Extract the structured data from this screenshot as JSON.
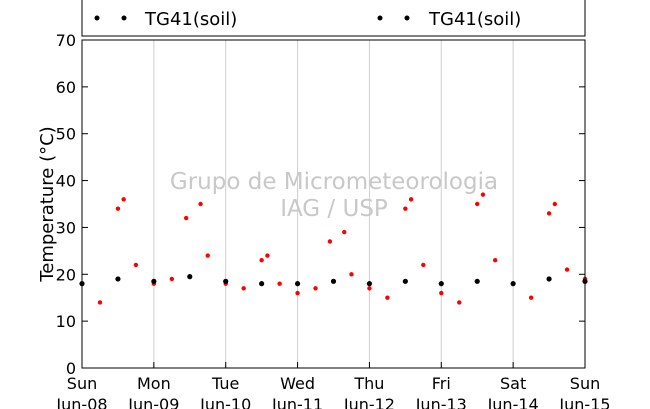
{
  "chart_data": {
    "type": "scatter",
    "title": "",
    "xlabel": "",
    "ylabel": "Temperature (°C)",
    "ylim": [
      0,
      70
    ],
    "y_ticks": [
      0,
      10,
      20,
      30,
      40,
      50,
      60,
      70
    ],
    "x_range_days": [
      0,
      7
    ],
    "x_ticks": [
      {
        "day": "Sun",
        "date": "Jun-08"
      },
      {
        "day": "Mon",
        "date": "Jun-09"
      },
      {
        "day": "Tue",
        "date": "Jun-10"
      },
      {
        "day": "Wed",
        "date": "Jun-11"
      },
      {
        "day": "Thu",
        "date": "Jun-12"
      },
      {
        "day": "Fri",
        "date": "Jun-13"
      },
      {
        "day": "Sat",
        "date": "Jun-14"
      },
      {
        "day": "Sun",
        "date": "Jun-15"
      }
    ],
    "grid": "vertical",
    "legend": {
      "placement": "top",
      "entries": [
        "TG41(soil)",
        "TG41(soil)"
      ]
    },
    "watermark": [
      "Grupo de Micrometeorologia",
      "IAG / USP"
    ],
    "series": [
      {
        "color": "#ff0000",
        "x": [
          0,
          0.25,
          0.5,
          0.58,
          0.75,
          1,
          1.25,
          1.45,
          1.65,
          1.75,
          2,
          2.25,
          2.5,
          2.58,
          2.75,
          3,
          3.25,
          3.45,
          3.65,
          3.75,
          4,
          4.25,
          4.5,
          4.58,
          4.75,
          5,
          5.25,
          5.5,
          5.58,
          5.75,
          6,
          6.25,
          6.5,
          6.58,
          6.75,
          7
        ],
        "y": [
          18,
          14,
          34,
          36,
          22,
          18,
          19,
          32,
          35,
          24,
          18,
          17,
          23,
          24,
          18,
          16,
          17,
          27,
          29,
          20,
          17,
          15,
          34,
          36,
          22,
          16,
          14,
          35,
          37,
          23,
          18,
          15,
          33,
          35,
          21,
          19
        ]
      },
      {
        "color": "#000000",
        "x": [
          0,
          0.5,
          1,
          1.5,
          2,
          2.5,
          3,
          3.5,
          4,
          4.5,
          5,
          5.5,
          6,
          6.5,
          7
        ],
        "y": [
          18,
          19,
          18.5,
          19.5,
          18.5,
          18,
          18,
          18.5,
          18,
          18.5,
          18,
          18.5,
          18,
          19,
          18.5
        ]
      }
    ]
  }
}
